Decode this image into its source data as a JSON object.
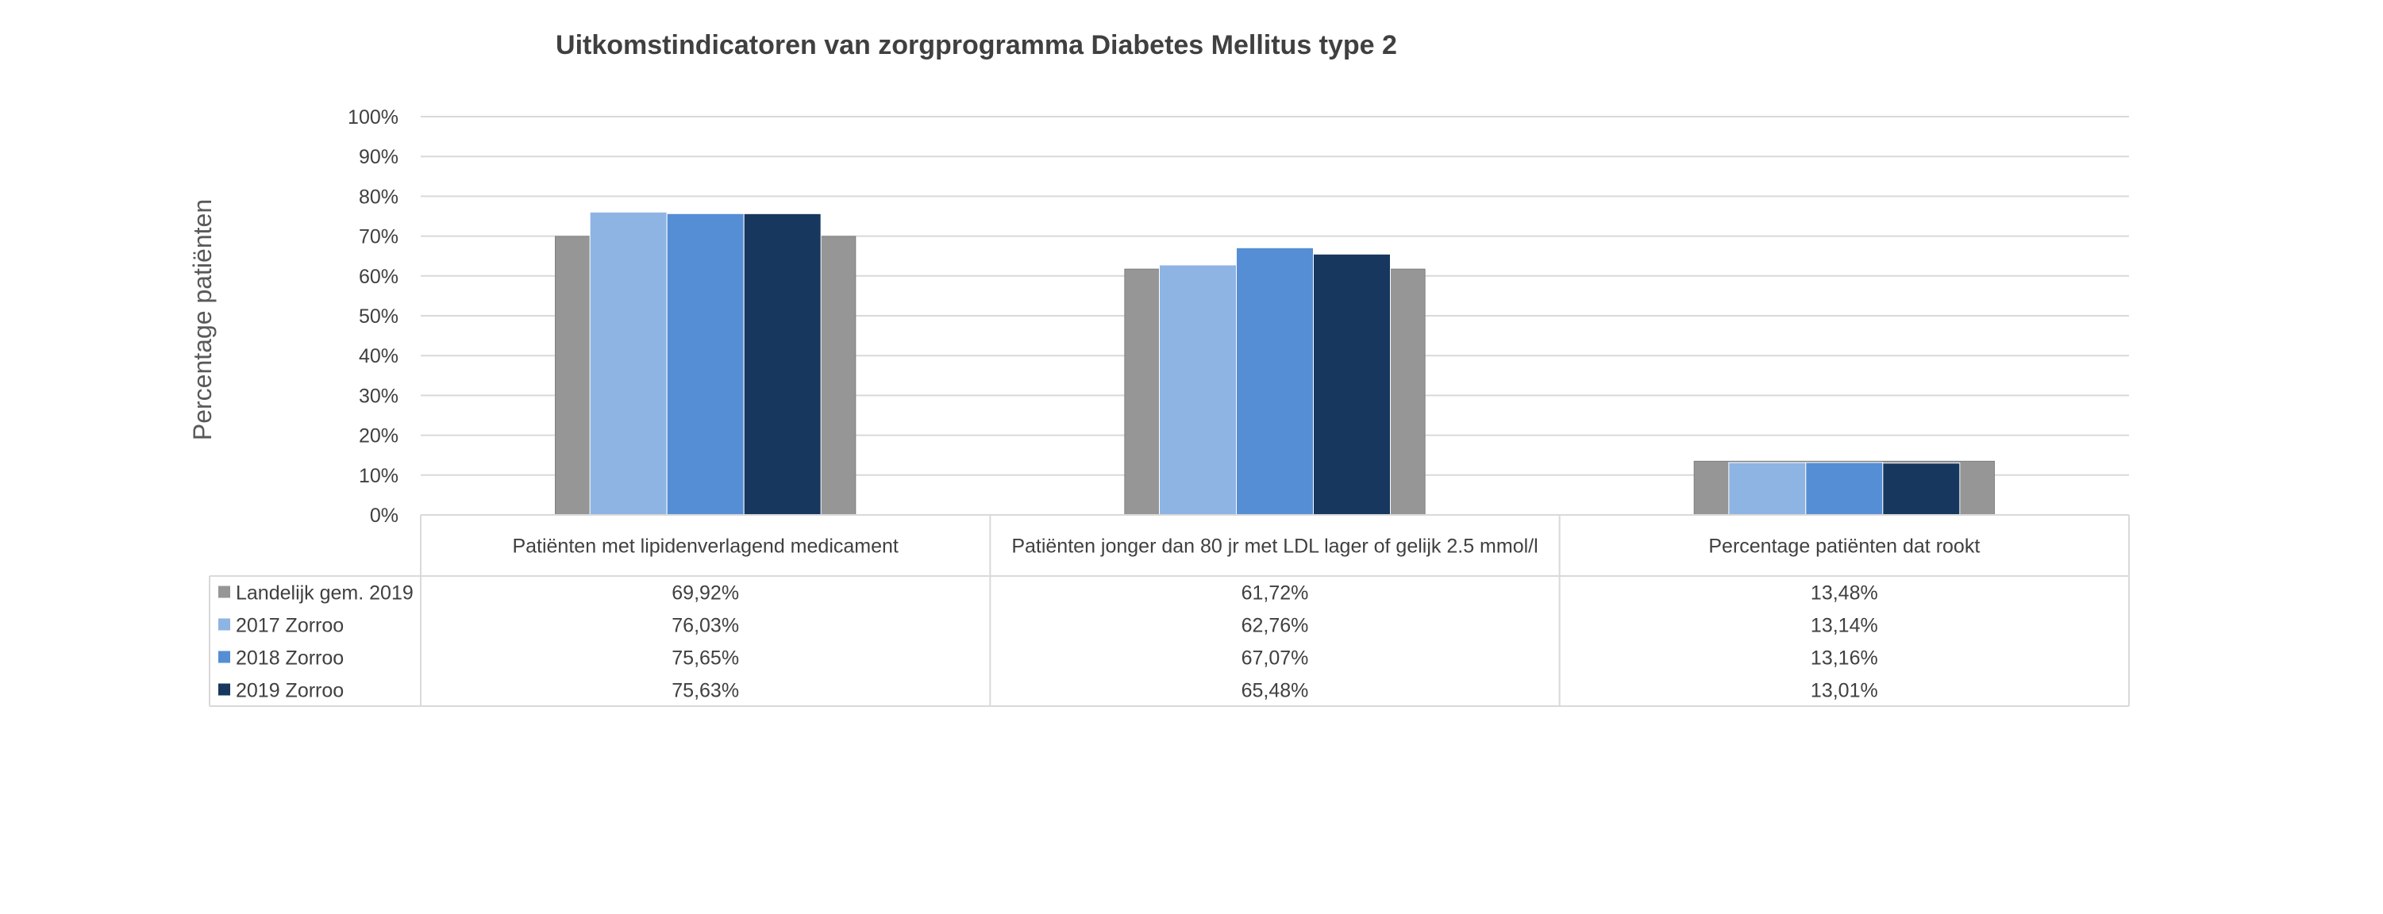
{
  "chart_data": {
    "type": "bar",
    "title": "Uitkomstindicatoren van zorgprogramma Diabetes Mellitus type 2",
    "ylabel": "Percentage patiënten",
    "xlabel": "",
    "ylim": [
      0,
      100
    ],
    "y_ticks": [
      "0%",
      "10%",
      "20%",
      "30%",
      "40%",
      "50%",
      "60%",
      "70%",
      "80%",
      "90%",
      "100%"
    ],
    "grid": true,
    "legend": "data-table-left",
    "categories": [
      "Patiënten met lipidenverlagend medicament",
      "Patiënten jonger dan 80 jr met LDL lager of gelijk 2.5 mmol/l",
      "Percentage patiënten dat rookt"
    ],
    "series": [
      {
        "name": "Landelijk gem. 2019",
        "color": "#969696",
        "values": [
          69.92,
          61.72,
          13.48
        ],
        "labels": [
          "69,92%",
          "61,72%",
          "13,48%"
        ]
      },
      {
        "name": "2017 Zorroo",
        "color": "#8eb4e3",
        "values": [
          76.03,
          62.76,
          13.14
        ],
        "labels": [
          "76,03%",
          "62,76%",
          "13,14%"
        ]
      },
      {
        "name": "2018 Zorroo",
        "color": "#558ed5",
        "values": [
          75.65,
          67.07,
          13.16
        ],
        "labels": [
          "75,65%",
          "67,07%",
          "13,16%"
        ]
      },
      {
        "name": "2019 Zorroo",
        "color": "#17375e",
        "values": [
          75.63,
          65.48,
          13.01
        ],
        "labels": [
          "75,63%",
          "65,48%",
          "13,01%"
        ]
      }
    ]
  }
}
